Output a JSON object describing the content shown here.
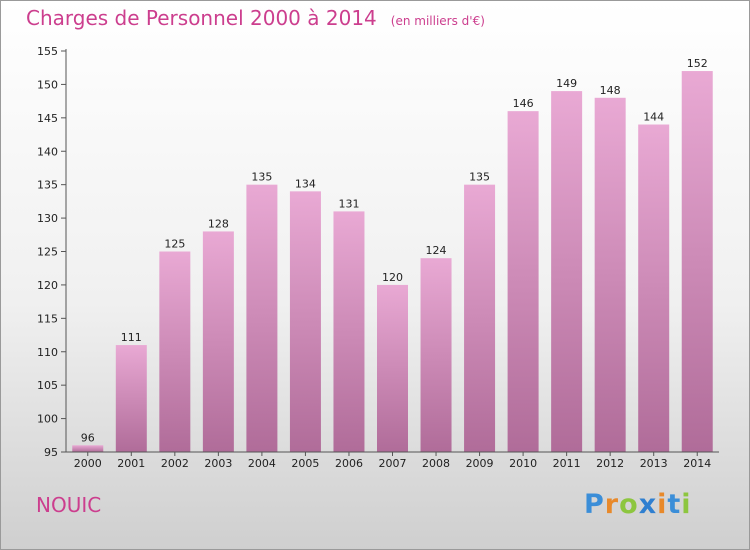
{
  "title": "Charges de Personnel 2000 à 2014",
  "unit_note": "(en milliers d'€)",
  "commune": "NOUIC",
  "logo": {
    "text": "Proxiti",
    "letters": [
      "P",
      "r",
      "o",
      "x",
      "i",
      "t",
      "i"
    ],
    "letter_colors": [
      "#3b8ed8",
      "#e8892a",
      "#8dc63f",
      "#2f7fd0",
      "#e8892a",
      "#3b8ed8",
      "#8dc63f"
    ]
  },
  "colors": {
    "accent": "#cc3e8e",
    "bar_top": "#e9a9d4",
    "bar_bottom": "#b06c99"
  },
  "chart_data": {
    "type": "bar",
    "title": "Charges de Personnel 2000 à 2014",
    "categories": [
      "2000",
      "2001",
      "2002",
      "2003",
      "2004",
      "2005",
      "2006",
      "2007",
      "2008",
      "2009",
      "2010",
      "2011",
      "2012",
      "2013",
      "2014"
    ],
    "values": [
      96,
      111,
      125,
      128,
      135,
      134,
      131,
      120,
      124,
      135,
      146,
      149,
      148,
      144,
      152
    ],
    "data_labels": [
      "96",
      "111",
      "125",
      "128",
      "135",
      "134",
      "131",
      "120",
      "124",
      "135",
      "146",
      "149",
      "148",
      "144",
      "152"
    ],
    "ylim": [
      95,
      155
    ],
    "yticks": [
      95,
      100,
      105,
      110,
      115,
      120,
      125,
      130,
      135,
      140,
      145,
      150,
      155
    ],
    "grid": false,
    "xlabel": "",
    "ylabel": ""
  }
}
